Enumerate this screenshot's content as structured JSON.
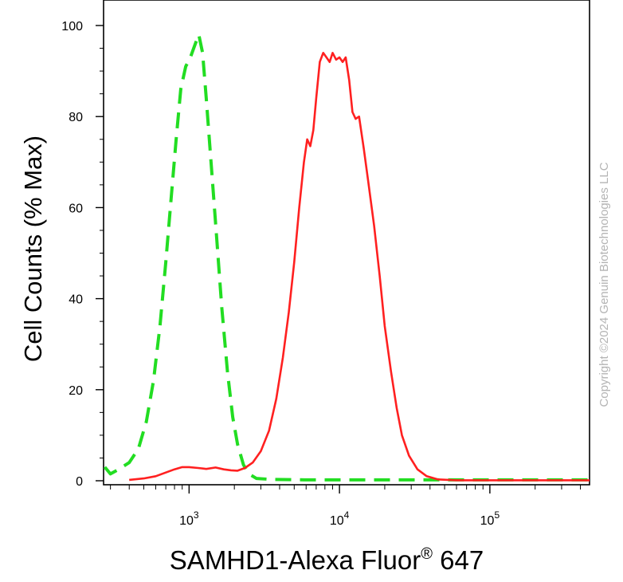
{
  "chart_data": {
    "type": "line",
    "xlabel_main": "SAMHD1-Alexa Fluor",
    "xlabel_sup": "®",
    "xlabel_tail": " 647",
    "ylabel": "Cell Counts (% Max)",
    "xscale": "log",
    "xlim": [
      270,
      460000
    ],
    "ylim": [
      0,
      100
    ],
    "grid": false,
    "legend": "none",
    "y_ticks": [
      {
        "value": 0,
        "label": "0"
      },
      {
        "value": 20,
        "label": "20"
      },
      {
        "value": 40,
        "label": "40"
      },
      {
        "value": 60,
        "label": "60"
      },
      {
        "value": 80,
        "label": "80"
      },
      {
        "value": 100,
        "label": "100"
      }
    ],
    "x_ticks": [
      {
        "value": 1000,
        "base": "10",
        "exp": "3"
      },
      {
        "value": 10000,
        "base": "10",
        "exp": "4"
      },
      {
        "value": 100000,
        "base": "10",
        "exp": "5"
      }
    ],
    "series": [
      {
        "color": "#22dd22",
        "dash": "dashed",
        "points": [
          [
            275,
            3
          ],
          [
            300,
            1.5
          ],
          [
            340,
            2.5
          ],
          [
            400,
            4
          ],
          [
            460,
            7
          ],
          [
            520,
            13
          ],
          [
            580,
            22
          ],
          [
            640,
            34
          ],
          [
            700,
            48
          ],
          [
            760,
            62
          ],
          [
            820,
            75
          ],
          [
            880,
            86
          ],
          [
            950,
            91
          ],
          [
            1020,
            93
          ],
          [
            1100,
            96
          ],
          [
            1160,
            98
          ],
          [
            1230,
            94
          ],
          [
            1300,
            84
          ],
          [
            1400,
            70
          ],
          [
            1520,
            54
          ],
          [
            1650,
            38
          ],
          [
            1800,
            24
          ],
          [
            1950,
            14
          ],
          [
            2100,
            8
          ],
          [
            2300,
            3.5
          ],
          [
            2500,
            1.5
          ],
          [
            2800,
            0.5
          ],
          [
            3500,
            0.3
          ],
          [
            6000,
            0.2
          ],
          [
            20000,
            0.2
          ],
          [
            460000,
            0.2
          ]
        ]
      },
      {
        "color": "#ff2020",
        "dash": "solid",
        "points": [
          [
            400,
            0.2
          ],
          [
            500,
            0.5
          ],
          [
            600,
            1
          ],
          [
            700,
            1.8
          ],
          [
            800,
            2.5
          ],
          [
            900,
            3
          ],
          [
            1000,
            3
          ],
          [
            1150,
            2.8
          ],
          [
            1300,
            2.6
          ],
          [
            1500,
            2.9
          ],
          [
            1700,
            2.5
          ],
          [
            1900,
            2.3
          ],
          [
            2100,
            2.2
          ],
          [
            2350,
            2.8
          ],
          [
            2650,
            4
          ],
          [
            3000,
            6.5
          ],
          [
            3400,
            11
          ],
          [
            3800,
            18
          ],
          [
            4200,
            27
          ],
          [
            4600,
            37
          ],
          [
            5000,
            48
          ],
          [
            5400,
            60
          ],
          [
            5800,
            70
          ],
          [
            6100,
            75
          ],
          [
            6400,
            73.5
          ],
          [
            6700,
            77
          ],
          [
            7000,
            84
          ],
          [
            7400,
            92
          ],
          [
            7800,
            94
          ],
          [
            8200,
            93
          ],
          [
            8600,
            92
          ],
          [
            9000,
            94
          ],
          [
            9500,
            92.5
          ],
          [
            10000,
            93
          ],
          [
            10500,
            92
          ],
          [
            11000,
            93
          ],
          [
            11600,
            88
          ],
          [
            12200,
            81
          ],
          [
            12800,
            79.5
          ],
          [
            13500,
            80
          ],
          [
            14500,
            73
          ],
          [
            15500,
            66
          ],
          [
            17000,
            56
          ],
          [
            18500,
            45
          ],
          [
            20000,
            34
          ],
          [
            22000,
            24
          ],
          [
            24000,
            16
          ],
          [
            26000,
            10
          ],
          [
            29000,
            5.5
          ],
          [
            33000,
            2.5
          ],
          [
            38000,
            1
          ],
          [
            45000,
            0.3
          ],
          [
            60000,
            0.1
          ],
          [
            460000,
            0.1
          ]
        ]
      }
    ]
  },
  "watermark": "Copyright ©2024 Genuin Biotechnologies LLC"
}
